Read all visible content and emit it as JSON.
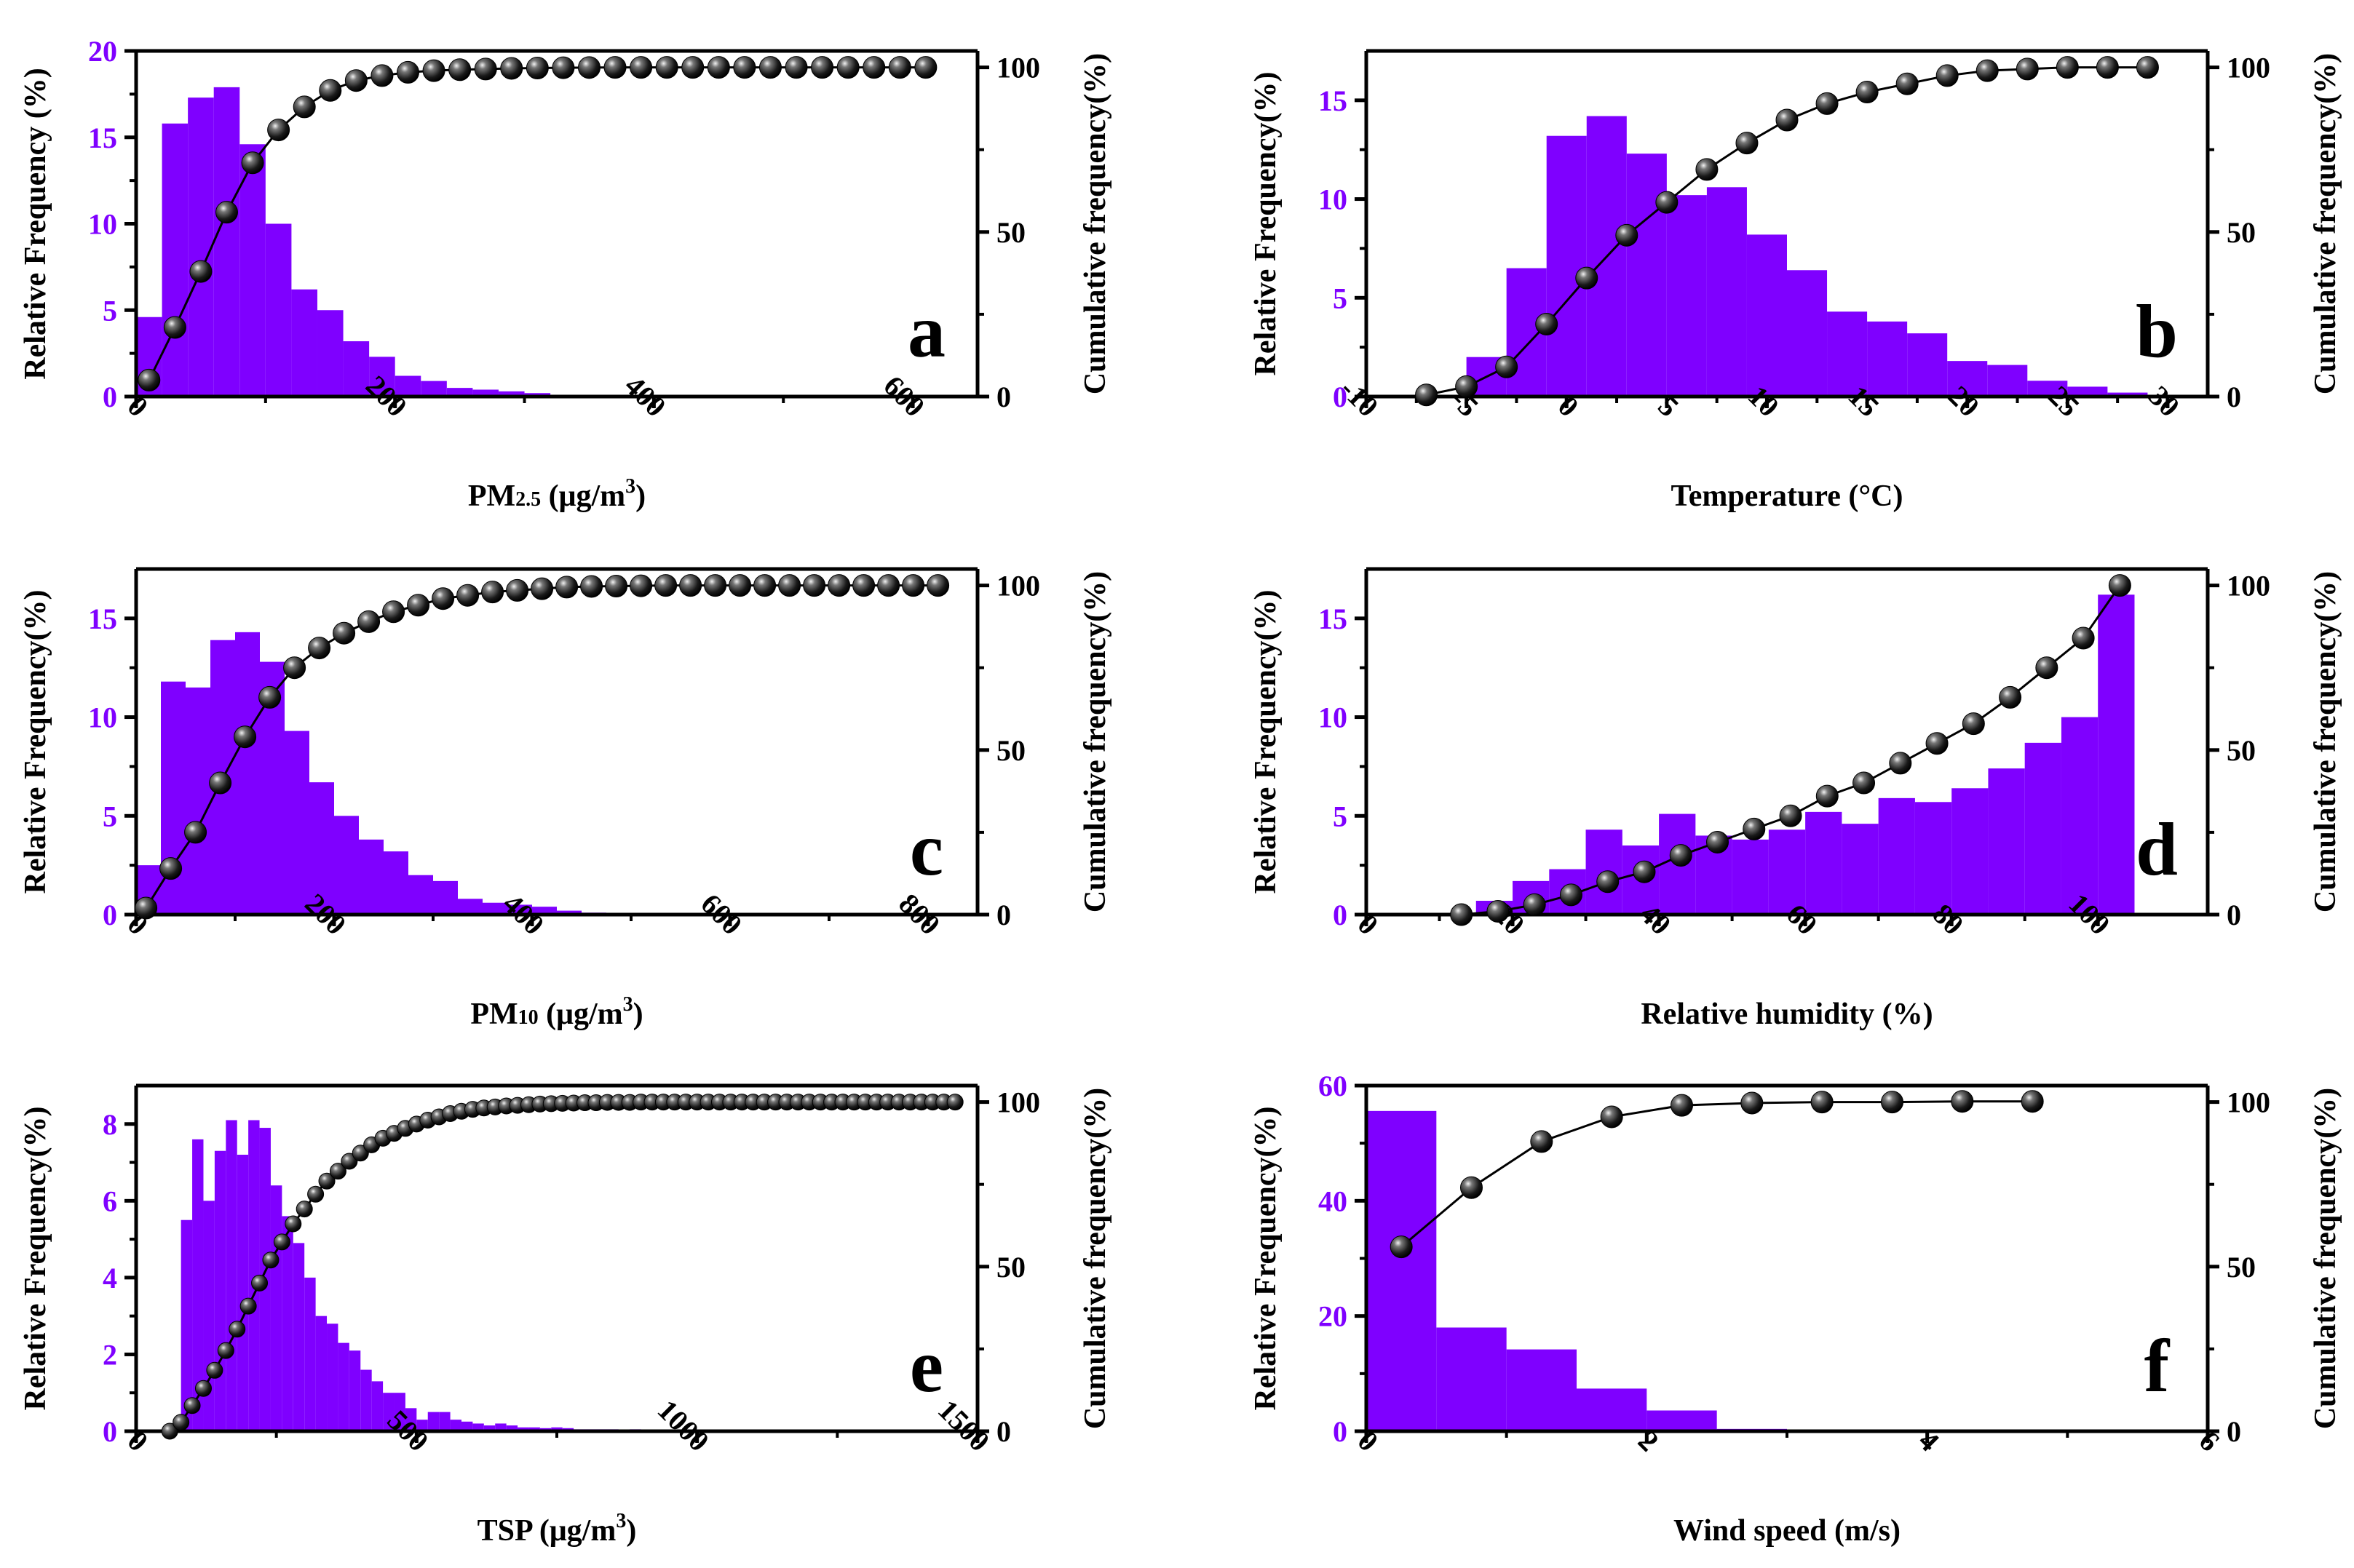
{
  "colors": {
    "bar": "#7f00ff",
    "left_axis": "#7f00ff",
    "right_axis": "#000000",
    "marker": "#111111",
    "line": "#000000"
  },
  "chart_data": [
    {
      "panel": "a",
      "type": "bar",
      "xlabel": "PM",
      "xlabel_sub": "2.5",
      "xlabel_rest": " (μg/m",
      "xlabel_sup": "3",
      "xlabel_end": ")",
      "ylabel": "Relative Frequency (%)",
      "y2label": "Cumulative frequency(%)",
      "xlim": [
        0,
        650
      ],
      "ylim": [
        0,
        20
      ],
      "y2lim": [
        0,
        105
      ],
      "xticks": [
        0,
        200,
        400,
        600
      ],
      "yticks": [
        0,
        5,
        10,
        15,
        20
      ],
      "y2ticks": [
        0,
        50,
        100
      ],
      "bin_width": 20,
      "bins": [
        0,
        20,
        40,
        60,
        80,
        100,
        120,
        140,
        160,
        180,
        200,
        220,
        240,
        260,
        280,
        300,
        320,
        340,
        360,
        380,
        400
      ],
      "values": [
        4.6,
        15.8,
        17.3,
        17.9,
        14.6,
        10.0,
        6.2,
        5.0,
        3.2,
        2.3,
        1.2,
        0.9,
        0.5,
        0.4,
        0.3,
        0.2,
        0.1,
        0.1,
        0.05,
        0.05,
        0.05
      ],
      "cum_x": [
        10,
        30,
        50,
        70,
        90,
        110,
        130,
        150,
        170,
        190,
        210,
        230,
        250,
        270,
        290,
        310,
        330,
        350,
        370,
        390,
        410,
        430,
        450,
        470,
        490,
        510,
        530,
        550,
        570,
        590,
        610
      ],
      "cum_y": [
        5,
        21,
        38,
        56,
        71,
        81,
        88,
        93,
        96,
        97.5,
        98.5,
        99,
        99.3,
        99.5,
        99.7,
        99.8,
        99.9,
        99.95,
        100,
        100,
        100,
        100,
        100,
        100,
        100,
        100,
        100,
        100,
        100,
        100,
        100
      ]
    },
    {
      "panel": "b",
      "type": "bar",
      "xlabel": "Temperature (°C)",
      "ylabel": "Relative Frequency(%)",
      "y2label": "Cumulative frequency(%)",
      "xlim": [
        -10,
        32
      ],
      "ylim": [
        0,
        17.5
      ],
      "y2lim": [
        0,
        105
      ],
      "xticks": [
        -10,
        -5,
        0,
        5,
        10,
        15,
        20,
        25,
        30
      ],
      "yticks": [
        0,
        5,
        10,
        15
      ],
      "y2ticks": [
        0,
        50,
        100
      ],
      "bin_width": 2,
      "bins": [
        -5,
        -3,
        -1,
        1,
        3,
        5,
        7,
        9,
        11,
        13,
        15,
        17,
        19,
        21,
        23,
        25,
        27
      ],
      "values": [
        2.0,
        6.5,
        13.2,
        14.2,
        12.3,
        10.2,
        10.6,
        8.2,
        6.4,
        4.3,
        3.8,
        3.2,
        1.8,
        1.6,
        0.8,
        0.5,
        0.2
      ],
      "cum_x": [
        -7,
        -5,
        -3,
        -1,
        1,
        3,
        5,
        7,
        9,
        11,
        13,
        15,
        17,
        19,
        21,
        23,
        25,
        27,
        29
      ],
      "cum_y": [
        0.5,
        3,
        9,
        22,
        36,
        49,
        59,
        69,
        77,
        84,
        89,
        92.5,
        95,
        97.5,
        99,
        99.5,
        100,
        100,
        100
      ]
    },
    {
      "panel": "c",
      "type": "bar",
      "xlabel": "PM",
      "xlabel_sub": "10",
      "xlabel_rest": " (μg/m",
      "xlabel_sup": "3",
      "xlabel_end": ")",
      "ylabel": "Relative Frequency(%)",
      "y2label": "Cumulative frequency(%)",
      "xlim": [
        0,
        850
      ],
      "ylim": [
        0,
        17.5
      ],
      "y2lim": [
        0,
        105
      ],
      "xticks": [
        0,
        200,
        400,
        600,
        800
      ],
      "yticks": [
        0,
        5,
        10,
        15
      ],
      "y2ticks": [
        0,
        50,
        100
      ],
      "bin_width": 25,
      "bins": [
        0,
        25,
        50,
        75,
        100,
        125,
        150,
        175,
        200,
        225,
        250,
        275,
        300,
        325,
        350,
        375,
        400,
        425,
        450,
        475
      ],
      "values": [
        2.5,
        11.8,
        11.5,
        13.9,
        14.3,
        12.8,
        9.3,
        6.7,
        5.0,
        3.8,
        3.2,
        2.0,
        1.7,
        0.8,
        0.6,
        0.5,
        0.4,
        0.2,
        0.1,
        0.05
      ],
      "cum_x": [
        10,
        35,
        60,
        85,
        110,
        135,
        160,
        185,
        210,
        235,
        260,
        285,
        310,
        335,
        360,
        385,
        410,
        435,
        460,
        485,
        510,
        535,
        560,
        585,
        610,
        635,
        660,
        685,
        710,
        735,
        760,
        785,
        810
      ],
      "cum_y": [
        2,
        14,
        25,
        40,
        54,
        66,
        75,
        81,
        85.5,
        89,
        92,
        94,
        96,
        97,
        98,
        98.5,
        99,
        99.5,
        99.7,
        99.8,
        99.9,
        100,
        100,
        100,
        100,
        100,
        100,
        100,
        100,
        100,
        100,
        100,
        100
      ]
    },
    {
      "panel": "d",
      "type": "bar",
      "xlabel": "Relative humidity (%)",
      "ylabel": "Relative Frequency(%)",
      "y2label": "Cumulative frequency(%)",
      "xlim": [
        0,
        115
      ],
      "ylim": [
        0,
        17.5
      ],
      "y2lim": [
        0,
        105
      ],
      "xticks": [
        0,
        20,
        40,
        60,
        80,
        100
      ],
      "yticks": [
        0,
        5,
        10,
        15
      ],
      "y2ticks": [
        0,
        50,
        100
      ],
      "bin_width": 5,
      "bins": [
        15,
        20,
        25,
        30,
        35,
        40,
        45,
        50,
        55,
        60,
        65,
        70,
        75,
        80,
        85,
        90,
        95,
        100
      ],
      "values": [
        0.7,
        1.7,
        2.3,
        4.3,
        3.5,
        5.1,
        4.0,
        3.8,
        4.3,
        5.2,
        4.6,
        5.9,
        5.7,
        6.4,
        7.4,
        8.7,
        10.0,
        16.2
      ],
      "cum_x": [
        13,
        18,
        23,
        28,
        33,
        38,
        43,
        48,
        53,
        58,
        63,
        68,
        73,
        78,
        83,
        88,
        93,
        98,
        103
      ],
      "cum_y": [
        0,
        1,
        3,
        6,
        10,
        13,
        18,
        22,
        26,
        30,
        36,
        40,
        46,
        52,
        58,
        66,
        75,
        84,
        100
      ]
    },
    {
      "panel": "e",
      "type": "bar",
      "xlabel": "TSP (μg/m",
      "xlabel_sup": "3",
      "xlabel_end": ")",
      "ylabel": "Relative Frequency(%)",
      "y2label": "Cumulative frequency(%)",
      "xlim": [
        0,
        1500
      ],
      "ylim": [
        0,
        9
      ],
      "y2lim": [
        0,
        105
      ],
      "xticks": [
        0,
        500,
        1000,
        1500
      ],
      "yticks": [
        0,
        2,
        4,
        6,
        8
      ],
      "y2ticks": [
        0,
        50,
        100
      ],
      "bin_width": 20,
      "bins": [
        80,
        100,
        120,
        140,
        160,
        180,
        200,
        220,
        240,
        260,
        280,
        300,
        320,
        340,
        360,
        380,
        400,
        420,
        440,
        460,
        480,
        500,
        520,
        540,
        560,
        580,
        600,
        620,
        640,
        660,
        680,
        700,
        720,
        740,
        760,
        780,
        800,
        820,
        840,
        860,
        880,
        900,
        920,
        940,
        960,
        980,
        1000,
        1020,
        1040
      ],
      "values": [
        5.5,
        7.6,
        6.0,
        7.3,
        8.1,
        7.2,
        8.1,
        7.9,
        6.4,
        5.6,
        4.9,
        4.0,
        3.0,
        2.8,
        2.3,
        2.1,
        1.6,
        1.3,
        1.0,
        1.0,
        0.6,
        0.3,
        0.5,
        0.5,
        0.3,
        0.25,
        0.2,
        0.15,
        0.2,
        0.15,
        0.1,
        0.1,
        0.08,
        0.1,
        0.08,
        0.05,
        0.05,
        0.05,
        0.05,
        0.03,
        0.05,
        0.03,
        0.03,
        0.03,
        0.03,
        0.03,
        0.03,
        0.03,
        0.03
      ],
      "cum_x": [
        60,
        80,
        100,
        120,
        140,
        160,
        180,
        200,
        220,
        240,
        260,
        280,
        300,
        320,
        340,
        360,
        380,
        400,
        420,
        440,
        460,
        480,
        500,
        520,
        540,
        560,
        580,
        600,
        620,
        640,
        660,
        680,
        700,
        720,
        740,
        760,
        780,
        800,
        820,
        840,
        860,
        880,
        900,
        920,
        940,
        960,
        980,
        1000,
        1020,
        1040,
        1060,
        1080,
        1100,
        1120,
        1140,
        1160,
        1180,
        1200,
        1220,
        1240,
        1260,
        1280,
        1300,
        1320,
        1340,
        1360,
        1380,
        1400,
        1420,
        1440,
        1460
      ],
      "cum_y": [
        0,
        2.7,
        7.8,
        13,
        18.5,
        24.5,
        31,
        38,
        45,
        52,
        57.5,
        63,
        67.5,
        72,
        76,
        79,
        82,
        84.5,
        87,
        89,
        90.5,
        92,
        93.3,
        94.5,
        95.5,
        96.5,
        97.2,
        97.8,
        98.2,
        98.5,
        98.8,
        99,
        99.2,
        99.4,
        99.5,
        99.6,
        99.7,
        99.8,
        99.8,
        99.9,
        99.9,
        99.9,
        100,
        100,
        100,
        100,
        100,
        100,
        100,
        100,
        100,
        100,
        100,
        100,
        100,
        100,
        100,
        100,
        100,
        100,
        100,
        100,
        100,
        100,
        100,
        100,
        100,
        100,
        100,
        100,
        100
      ]
    },
    {
      "panel": "f",
      "type": "bar",
      "xlabel": "Wind speed (m/s)",
      "ylabel": "Relative Frequency(%)",
      "y2label": "Cumulative frequency(%)",
      "xlim": [
        0,
        6
      ],
      "ylim": [
        0,
        60
      ],
      "y2lim": [
        0,
        105
      ],
      "xticks": [
        0,
        2,
        4,
        6
      ],
      "yticks": [
        0,
        20,
        40,
        60
      ],
      "y2ticks": [
        0,
        50,
        100
      ],
      "bin_width": 0.5,
      "bins": [
        0,
        0.5,
        1.0,
        1.5,
        2.0,
        2.5
      ],
      "values": [
        55.6,
        18.0,
        14.2,
        7.4,
        3.6,
        0.4
      ],
      "cum_x": [
        0.25,
        0.75,
        1.25,
        1.75,
        2.25,
        2.75,
        3.25,
        3.75,
        4.25,
        4.75
      ],
      "cum_y": [
        56,
        74,
        88,
        95.5,
        99,
        99.7,
        100,
        100,
        100.2,
        100.2
      ]
    }
  ]
}
